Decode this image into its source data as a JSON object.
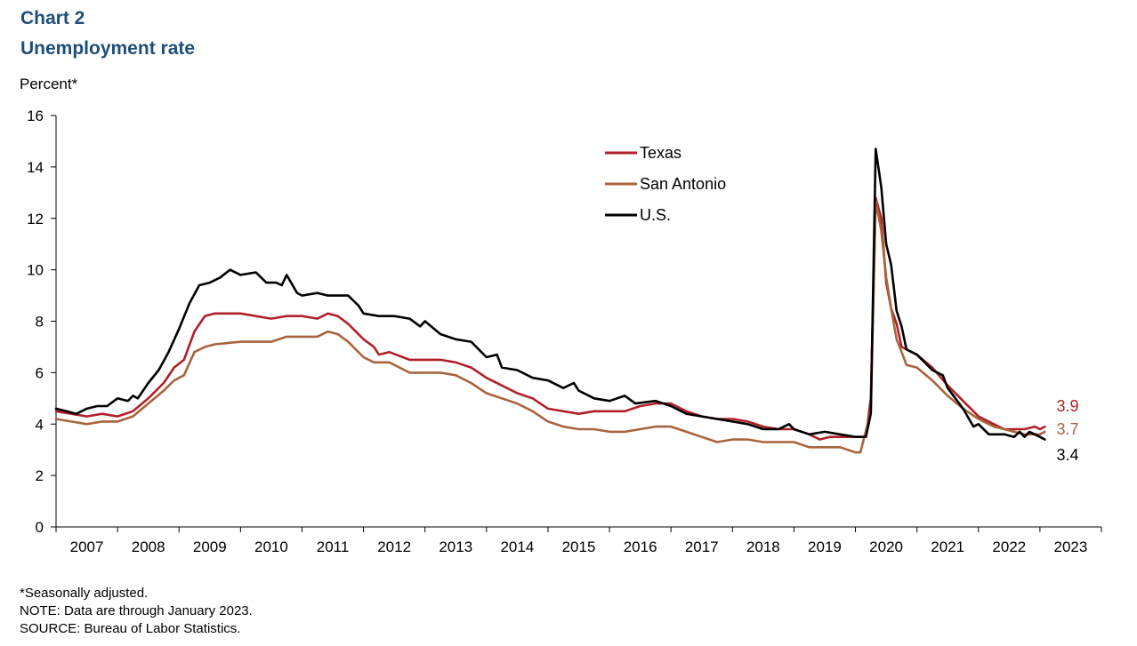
{
  "header": {
    "chart_number": "Chart 2",
    "title": "Unemployment rate"
  },
  "colors": {
    "title": "#1f4e79",
    "texas": "#b0202a",
    "san_antonio": "#a8643c",
    "us": "#000000",
    "axis": "#000000"
  },
  "notes": {
    "footnote": "*Seasonally adjusted.",
    "note": "NOTE: Data are through January 2023.",
    "source": "SOURCE: Bureau of Labor Statistics."
  },
  "chart_data": {
    "type": "line",
    "title": "Unemployment rate",
    "ylabel": "Percent*",
    "xlabel": "",
    "ylim": [
      0,
      16
    ],
    "xlim": [
      2007.0,
      2024.0
    ],
    "yticks": [
      0,
      2,
      4,
      6,
      8,
      10,
      12,
      14,
      16
    ],
    "yticklabels": [
      "0",
      "2",
      "4",
      "6",
      "8",
      "10",
      "12",
      "14",
      "16"
    ],
    "xticklabels": [
      "2007",
      "2008",
      "2009",
      "2010",
      "2011",
      "2012",
      "2013",
      "2014",
      "2015",
      "2016",
      "2017",
      "2018",
      "2019",
      "2020",
      "2021",
      "2022",
      "2023"
    ],
    "grid": false,
    "legend_position": "upper-middle",
    "series": [
      {
        "name": "Texas",
        "key": "texas",
        "end_label": "3.9",
        "points": [
          [
            2007.0,
            4.5
          ],
          [
            2007.25,
            4.4
          ],
          [
            2007.5,
            4.3
          ],
          [
            2007.75,
            4.4
          ],
          [
            2008.0,
            4.3
          ],
          [
            2008.25,
            4.5
          ],
          [
            2008.5,
            5.0
          ],
          [
            2008.75,
            5.6
          ],
          [
            2008.92,
            6.2
          ],
          [
            2009.08,
            6.5
          ],
          [
            2009.25,
            7.6
          ],
          [
            2009.42,
            8.2
          ],
          [
            2009.58,
            8.3
          ],
          [
            2010.0,
            8.3
          ],
          [
            2010.25,
            8.2
          ],
          [
            2010.5,
            8.1
          ],
          [
            2010.75,
            8.2
          ],
          [
            2011.0,
            8.2
          ],
          [
            2011.25,
            8.1
          ],
          [
            2011.42,
            8.3
          ],
          [
            2011.58,
            8.2
          ],
          [
            2011.75,
            7.9
          ],
          [
            2012.0,
            7.3
          ],
          [
            2012.17,
            7.0
          ],
          [
            2012.25,
            6.7
          ],
          [
            2012.42,
            6.8
          ],
          [
            2012.75,
            6.5
          ],
          [
            2013.0,
            6.5
          ],
          [
            2013.25,
            6.5
          ],
          [
            2013.5,
            6.4
          ],
          [
            2013.75,
            6.2
          ],
          [
            2014.0,
            5.8
          ],
          [
            2014.25,
            5.5
          ],
          [
            2014.5,
            5.2
          ],
          [
            2014.75,
            5.0
          ],
          [
            2015.0,
            4.6
          ],
          [
            2015.25,
            4.5
          ],
          [
            2015.5,
            4.4
          ],
          [
            2015.75,
            4.5
          ],
          [
            2016.0,
            4.5
          ],
          [
            2016.25,
            4.5
          ],
          [
            2016.5,
            4.7
          ],
          [
            2016.75,
            4.8
          ],
          [
            2017.0,
            4.8
          ],
          [
            2017.25,
            4.5
          ],
          [
            2017.5,
            4.3
          ],
          [
            2017.75,
            4.2
          ],
          [
            2018.0,
            4.2
          ],
          [
            2018.25,
            4.1
          ],
          [
            2018.5,
            3.9
          ],
          [
            2018.75,
            3.8
          ],
          [
            2019.0,
            3.8
          ],
          [
            2019.25,
            3.6
          ],
          [
            2019.42,
            3.4
          ],
          [
            2019.58,
            3.5
          ],
          [
            2019.75,
            3.5
          ],
          [
            2020.0,
            3.5
          ],
          [
            2020.17,
            3.5
          ],
          [
            2020.25,
            5.0
          ],
          [
            2020.33,
            12.8
          ],
          [
            2020.42,
            12.0
          ],
          [
            2020.5,
            9.5
          ],
          [
            2020.58,
            8.5
          ],
          [
            2020.67,
            7.9
          ],
          [
            2020.75,
            7.0
          ],
          [
            2021.0,
            6.7
          ],
          [
            2021.25,
            6.2
          ],
          [
            2021.5,
            5.5
          ],
          [
            2021.75,
            4.9
          ],
          [
            2022.0,
            4.3
          ],
          [
            2022.25,
            4.0
          ],
          [
            2022.42,
            3.8
          ],
          [
            2022.58,
            3.8
          ],
          [
            2022.75,
            3.8
          ],
          [
            2022.92,
            3.9
          ],
          [
            2023.0,
            3.8
          ],
          [
            2023.08,
            3.9
          ]
        ]
      },
      {
        "name": "San Antonio",
        "key": "san_antonio",
        "end_label": "3.7",
        "points": [
          [
            2007.0,
            4.2
          ],
          [
            2007.25,
            4.1
          ],
          [
            2007.5,
            4.0
          ],
          [
            2007.75,
            4.1
          ],
          [
            2008.0,
            4.1
          ],
          [
            2008.25,
            4.3
          ],
          [
            2008.5,
            4.8
          ],
          [
            2008.75,
            5.3
          ],
          [
            2008.92,
            5.7
          ],
          [
            2009.08,
            5.9
          ],
          [
            2009.25,
            6.8
          ],
          [
            2009.42,
            7.0
          ],
          [
            2009.58,
            7.1
          ],
          [
            2010.0,
            7.2
          ],
          [
            2010.25,
            7.2
          ],
          [
            2010.5,
            7.2
          ],
          [
            2010.75,
            7.4
          ],
          [
            2011.0,
            7.4
          ],
          [
            2011.25,
            7.4
          ],
          [
            2011.42,
            7.6
          ],
          [
            2011.58,
            7.5
          ],
          [
            2011.75,
            7.2
          ],
          [
            2012.0,
            6.6
          ],
          [
            2012.17,
            6.4
          ],
          [
            2012.42,
            6.4
          ],
          [
            2012.75,
            6.0
          ],
          [
            2013.0,
            6.0
          ],
          [
            2013.25,
            6.0
          ],
          [
            2013.5,
            5.9
          ],
          [
            2013.75,
            5.6
          ],
          [
            2014.0,
            5.2
          ],
          [
            2014.25,
            5.0
          ],
          [
            2014.5,
            4.8
          ],
          [
            2014.75,
            4.5
          ],
          [
            2015.0,
            4.1
          ],
          [
            2015.25,
            3.9
          ],
          [
            2015.5,
            3.8
          ],
          [
            2015.75,
            3.8
          ],
          [
            2016.0,
            3.7
          ],
          [
            2016.25,
            3.7
          ],
          [
            2016.5,
            3.8
          ],
          [
            2016.75,
            3.9
          ],
          [
            2017.0,
            3.9
          ],
          [
            2017.25,
            3.7
          ],
          [
            2017.5,
            3.5
          ],
          [
            2017.75,
            3.3
          ],
          [
            2018.0,
            3.4
          ],
          [
            2018.25,
            3.4
          ],
          [
            2018.5,
            3.3
          ],
          [
            2018.75,
            3.3
          ],
          [
            2019.0,
            3.3
          ],
          [
            2019.25,
            3.1
          ],
          [
            2019.5,
            3.1
          ],
          [
            2019.75,
            3.1
          ],
          [
            2020.0,
            2.9
          ],
          [
            2020.08,
            2.9
          ],
          [
            2020.25,
            4.5
          ],
          [
            2020.33,
            12.7
          ],
          [
            2020.42,
            11.5
          ],
          [
            2020.5,
            9.7
          ],
          [
            2020.58,
            8.5
          ],
          [
            2020.67,
            7.3
          ],
          [
            2020.75,
            6.8
          ],
          [
            2020.83,
            6.3
          ],
          [
            2021.0,
            6.2
          ],
          [
            2021.25,
            5.7
          ],
          [
            2021.5,
            5.1
          ],
          [
            2021.75,
            4.6
          ],
          [
            2022.0,
            4.2
          ],
          [
            2022.25,
            3.9
          ],
          [
            2022.42,
            3.8
          ],
          [
            2022.58,
            3.7
          ],
          [
            2022.75,
            3.6
          ],
          [
            2022.92,
            3.6
          ],
          [
            2023.0,
            3.6
          ],
          [
            2023.08,
            3.7
          ]
        ]
      },
      {
        "name": "U.S.",
        "key": "us",
        "end_label": "3.4",
        "points": [
          [
            2007.0,
            4.6
          ],
          [
            2007.17,
            4.5
          ],
          [
            2007.33,
            4.4
          ],
          [
            2007.5,
            4.6
          ],
          [
            2007.67,
            4.7
          ],
          [
            2007.83,
            4.7
          ],
          [
            2008.0,
            5.0
          ],
          [
            2008.17,
            4.9
          ],
          [
            2008.25,
            5.1
          ],
          [
            2008.33,
            5.0
          ],
          [
            2008.5,
            5.6
          ],
          [
            2008.67,
            6.1
          ],
          [
            2008.83,
            6.8
          ],
          [
            2009.0,
            7.7
          ],
          [
            2009.17,
            8.7
          ],
          [
            2009.33,
            9.4
          ],
          [
            2009.5,
            9.5
          ],
          [
            2009.67,
            9.7
          ],
          [
            2009.83,
            10.0
          ],
          [
            2010.0,
            9.8
          ],
          [
            2010.25,
            9.9
          ],
          [
            2010.42,
            9.5
          ],
          [
            2010.58,
            9.5
          ],
          [
            2010.67,
            9.4
          ],
          [
            2010.75,
            9.8
          ],
          [
            2010.92,
            9.1
          ],
          [
            2011.0,
            9.0
          ],
          [
            2011.25,
            9.1
          ],
          [
            2011.42,
            9.0
          ],
          [
            2011.75,
            9.0
          ],
          [
            2011.92,
            8.6
          ],
          [
            2012.0,
            8.3
          ],
          [
            2012.25,
            8.2
          ],
          [
            2012.5,
            8.2
          ],
          [
            2012.75,
            8.1
          ],
          [
            2012.92,
            7.8
          ],
          [
            2013.0,
            8.0
          ],
          [
            2013.25,
            7.5
          ],
          [
            2013.5,
            7.3
          ],
          [
            2013.75,
            7.2
          ],
          [
            2014.0,
            6.6
          ],
          [
            2014.17,
            6.7
          ],
          [
            2014.25,
            6.2
          ],
          [
            2014.5,
            6.1
          ],
          [
            2014.75,
            5.8
          ],
          [
            2015.0,
            5.7
          ],
          [
            2015.25,
            5.4
          ],
          [
            2015.42,
            5.6
          ],
          [
            2015.5,
            5.3
          ],
          [
            2015.75,
            5.0
          ],
          [
            2016.0,
            4.9
          ],
          [
            2016.25,
            5.1
          ],
          [
            2016.42,
            4.8
          ],
          [
            2016.75,
            4.9
          ],
          [
            2017.0,
            4.7
          ],
          [
            2017.25,
            4.4
          ],
          [
            2017.5,
            4.3
          ],
          [
            2017.75,
            4.2
          ],
          [
            2018.0,
            4.1
          ],
          [
            2018.25,
            4.0
          ],
          [
            2018.5,
            3.8
          ],
          [
            2018.75,
            3.8
          ],
          [
            2018.92,
            4.0
          ],
          [
            2019.0,
            3.8
          ],
          [
            2019.25,
            3.6
          ],
          [
            2019.5,
            3.7
          ],
          [
            2019.75,
            3.6
          ],
          [
            2020.0,
            3.5
          ],
          [
            2020.17,
            3.5
          ],
          [
            2020.25,
            4.4
          ],
          [
            2020.33,
            14.7
          ],
          [
            2020.42,
            13.2
          ],
          [
            2020.5,
            11.0
          ],
          [
            2020.58,
            10.2
          ],
          [
            2020.67,
            8.4
          ],
          [
            2020.75,
            7.8
          ],
          [
            2020.83,
            6.9
          ],
          [
            2021.0,
            6.7
          ],
          [
            2021.25,
            6.1
          ],
          [
            2021.42,
            5.9
          ],
          [
            2021.5,
            5.4
          ],
          [
            2021.75,
            4.6
          ],
          [
            2021.92,
            3.9
          ],
          [
            2022.0,
            4.0
          ],
          [
            2022.17,
            3.6
          ],
          [
            2022.42,
            3.6
          ],
          [
            2022.58,
            3.5
          ],
          [
            2022.67,
            3.7
          ],
          [
            2022.75,
            3.5
          ],
          [
            2022.83,
            3.7
          ],
          [
            2023.0,
            3.5
          ],
          [
            2023.08,
            3.4
          ]
        ]
      }
    ]
  }
}
